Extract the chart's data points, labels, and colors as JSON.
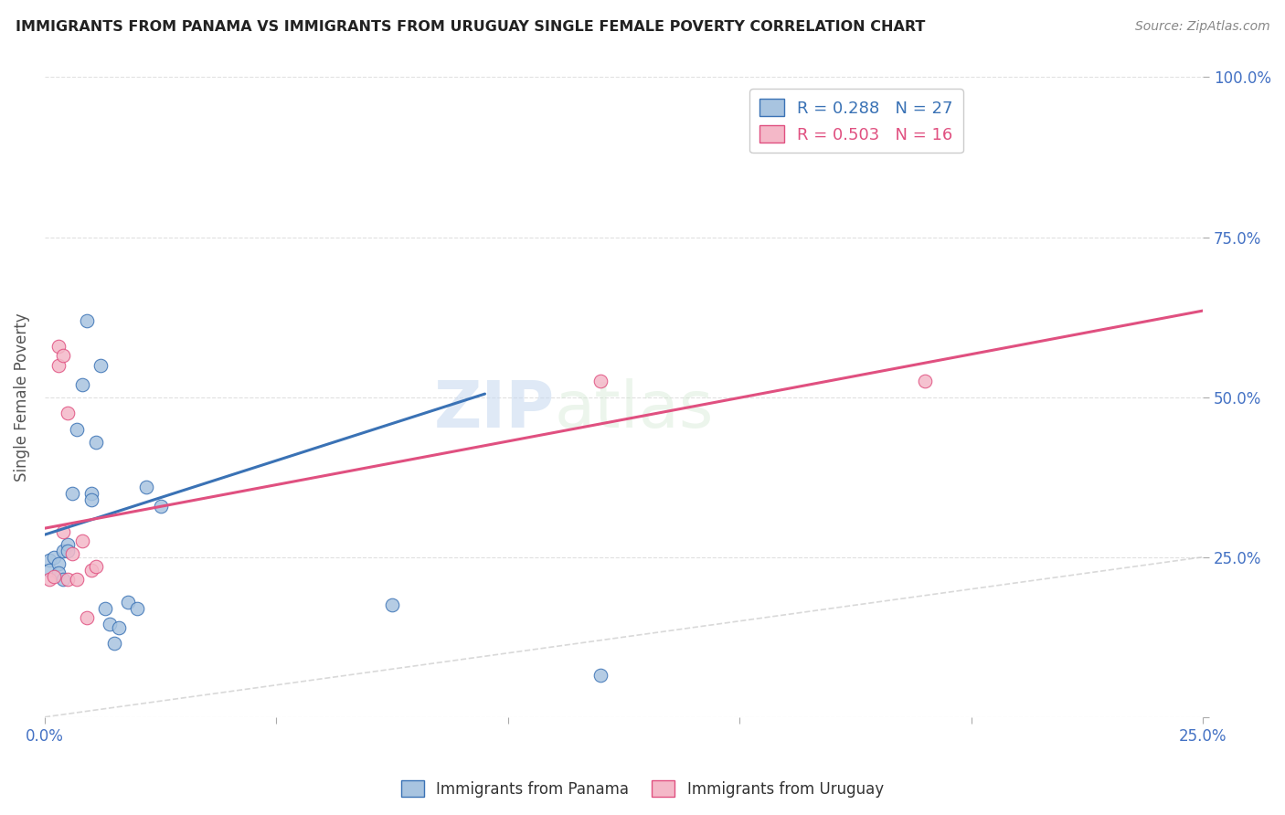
{
  "title": "IMMIGRANTS FROM PANAMA VS IMMIGRANTS FROM URUGUAY SINGLE FEMALE POVERTY CORRELATION CHART",
  "source": "Source: ZipAtlas.com",
  "ylabel": "Single Female Poverty",
  "xlim": [
    0.0,
    0.25
  ],
  "ylim": [
    0.0,
    1.0
  ],
  "xticks": [
    0.0,
    0.05,
    0.1,
    0.15,
    0.2,
    0.25
  ],
  "yticks": [
    0.0,
    0.25,
    0.5,
    0.75,
    1.0
  ],
  "xticklabels": [
    "0.0%",
    "",
    "",
    "",
    "",
    "25.0%"
  ],
  "yticklabels": [
    "",
    "25.0%",
    "50.0%",
    "75.0%",
    "100.0%"
  ],
  "panama_R": 0.288,
  "panama_N": 27,
  "uruguay_R": 0.503,
  "uruguay_N": 16,
  "panama_color": "#a8c4e0",
  "panama_line_color": "#3a72b5",
  "uruguay_color": "#f4b8c8",
  "uruguay_line_color": "#e05080",
  "diagonal_color": "#c0c0c0",
  "watermark_zip": "ZIP",
  "watermark_atlas": "atlas",
  "panama_x": [
    0.001,
    0.001,
    0.002,
    0.003,
    0.003,
    0.004,
    0.004,
    0.005,
    0.005,
    0.006,
    0.007,
    0.008,
    0.009,
    0.01,
    0.01,
    0.011,
    0.012,
    0.013,
    0.014,
    0.015,
    0.016,
    0.018,
    0.02,
    0.022,
    0.025,
    0.075,
    0.12
  ],
  "panama_y": [
    0.245,
    0.23,
    0.25,
    0.24,
    0.225,
    0.26,
    0.215,
    0.27,
    0.26,
    0.35,
    0.45,
    0.52,
    0.62,
    0.35,
    0.34,
    0.43,
    0.55,
    0.17,
    0.145,
    0.115,
    0.14,
    0.18,
    0.17,
    0.36,
    0.33,
    0.175,
    0.065
  ],
  "uruguay_x": [
    0.001,
    0.002,
    0.003,
    0.003,
    0.004,
    0.004,
    0.005,
    0.005,
    0.006,
    0.007,
    0.008,
    0.009,
    0.01,
    0.011,
    0.12,
    0.19
  ],
  "uruguay_y": [
    0.215,
    0.22,
    0.55,
    0.58,
    0.565,
    0.29,
    0.475,
    0.215,
    0.255,
    0.215,
    0.275,
    0.155,
    0.23,
    0.235,
    0.525,
    0.525
  ],
  "panama_trend_x": [
    0.0,
    0.095
  ],
  "panama_trend_y": [
    0.285,
    0.505
  ],
  "uruguay_trend_x": [
    0.0,
    0.25
  ],
  "uruguay_trend_y": [
    0.295,
    0.635
  ],
  "marker_size": 110,
  "background_color": "#ffffff",
  "grid_color": "#dddddd"
}
